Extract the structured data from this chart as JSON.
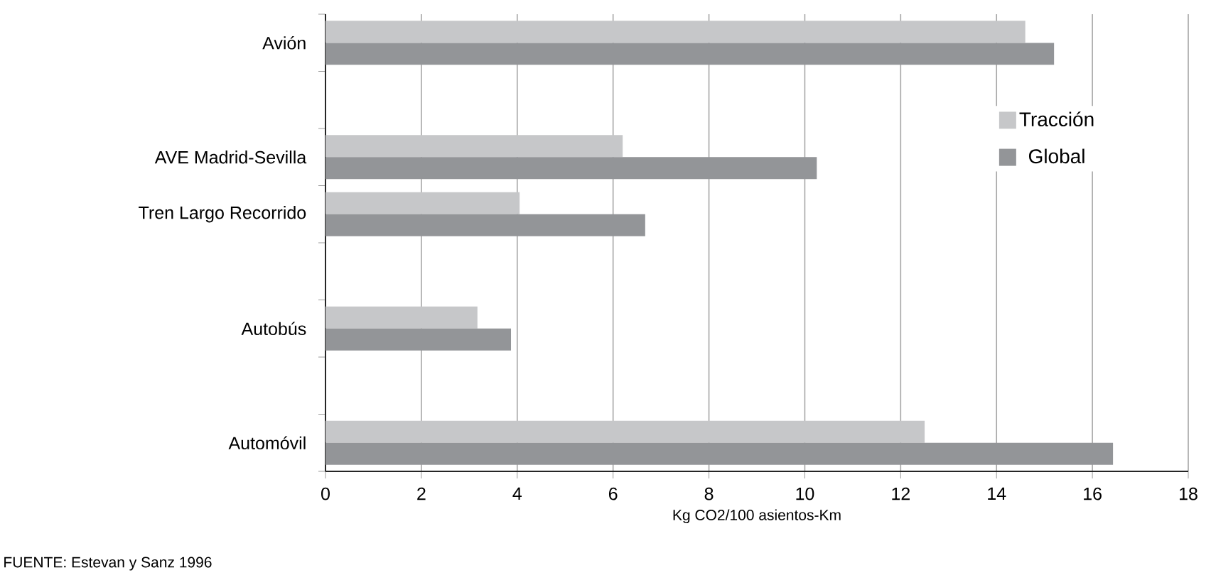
{
  "chart_data": {
    "type": "bar",
    "orientation": "horizontal",
    "categories": [
      "Avión",
      null,
      "AVE Madrid-Sevilla",
      "Tren Largo Recorrido",
      null,
      "Autobús",
      null,
      "Automóvil"
    ],
    "series": [
      {
        "name": "Tracción",
        "color": "#c6c7c9",
        "values": [
          14.6,
          null,
          6.2,
          4.05,
          null,
          3.17,
          null,
          12.5
        ]
      },
      {
        "name": "Global",
        "color": "#939598",
        "values": [
          15.2,
          null,
          10.25,
          6.67,
          null,
          3.87,
          null,
          16.43
        ]
      }
    ],
    "xlabel": "Kg CO2/100 asientos-Km",
    "xlim": [
      0,
      18
    ],
    "xticks": [
      0,
      2,
      4,
      6,
      8,
      10,
      12,
      14,
      16,
      18
    ],
    "grid": "x",
    "legend": "top right",
    "annotations": [
      "FUENTE: Estevan y Sanz 1996"
    ]
  }
}
